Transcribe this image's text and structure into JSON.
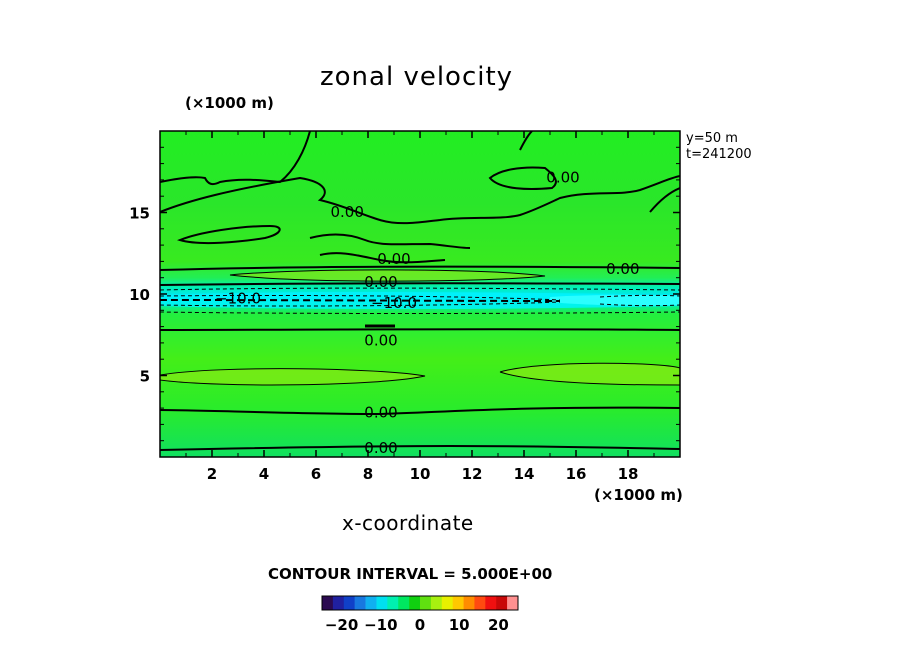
{
  "title": "zonal velocity",
  "info": [
    "y=50 m",
    "t=241200"
  ],
  "contour_interval": "CONTOUR INTERVAL = 5.000E+00",
  "colors": {
    "background_field": "#22ee22",
    "jet_core": "#00ffee",
    "palette": [
      "#2b0a50",
      "#2020a0",
      "#1040c8",
      "#1878e0",
      "#10b0f0",
      "#00e0f0",
      "#00f0b0",
      "#00e860",
      "#10d010",
      "#60e010",
      "#a8f010",
      "#e8f000",
      "#ffc800",
      "#ff8c00",
      "#ff4a10",
      "#f01010",
      "#c80808",
      "#ff9090"
    ]
  },
  "chart_data": {
    "type": "contour",
    "title": "zonal velocity",
    "xlabel": "x-coordinate",
    "xunit": "(×1000 m)",
    "yunit": "(×1000 m)",
    "xlim": [
      0,
      20
    ],
    "ylim": [
      0,
      20
    ],
    "xticks": [
      2,
      4,
      6,
      8,
      10,
      12,
      14,
      16,
      18
    ],
    "yticks": [
      5,
      10,
      15
    ],
    "contour_labels": [
      {
        "text": "0.00",
        "x": 15.5,
        "y": 17.2
      },
      {
        "text": "0.00",
        "x": 7.2,
        "y": 15.1
      },
      {
        "text": "0.00",
        "x": 9.0,
        "y": 12.2
      },
      {
        "text": "0.00",
        "x": 17.8,
        "y": 11.6
      },
      {
        "text": "0.00",
        "x": 8.5,
        "y": 10.8
      },
      {
        "text": "-10.0",
        "x": 3.0,
        "y": 9.8
      },
      {
        "text": "-10.0",
        "x": 9.0,
        "y": 9.5
      },
      {
        "text": "0.00",
        "x": 8.5,
        "y": 7.2
      },
      {
        "text": "0.00",
        "x": 8.5,
        "y": 2.8
      },
      {
        "text": "0.00",
        "x": 8.5,
        "y": 0.6
      }
    ],
    "colorbar": {
      "ticks": [
        -20,
        -10,
        0,
        10,
        20
      ],
      "tick_labels": [
        "-20",
        "-10",
        "0",
        "10",
        "20"
      ],
      "range": [
        -25,
        25
      ]
    }
  }
}
